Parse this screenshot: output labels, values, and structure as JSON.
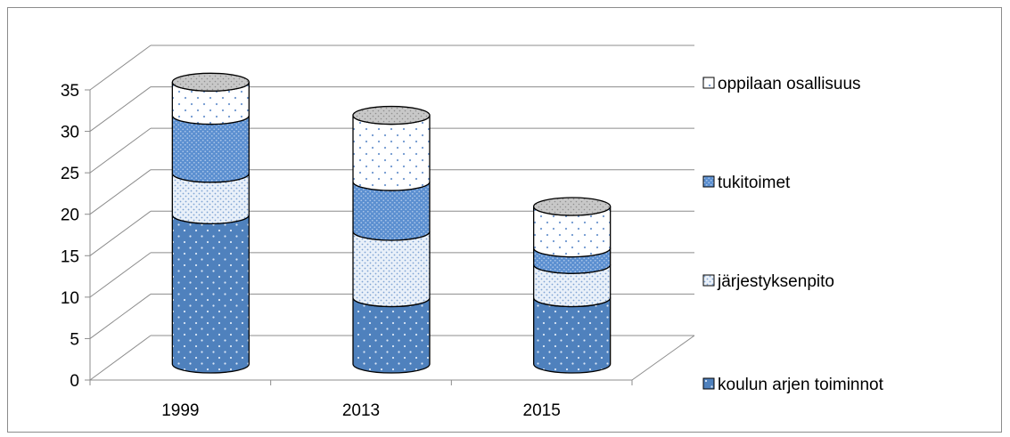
{
  "chart_data": {
    "type": "bar",
    "stacked": true,
    "style": "3d-cylinder",
    "title": "",
    "xlabel": "",
    "ylabel": "",
    "categories": [
      "1999",
      "2013",
      "2015"
    ],
    "ylim": [
      0,
      35
    ],
    "yticks": [
      0,
      5,
      10,
      15,
      20,
      25,
      30,
      35
    ],
    "grid": true,
    "legend_position": "right",
    "series": [
      {
        "name": "koulun arjen toiminnot",
        "values": [
          18,
          8,
          8
        ],
        "color": "#4f81bd",
        "pattern": "dots-on-blue"
      },
      {
        "name": "järjestyksenpito",
        "values": [
          5,
          8,
          4
        ],
        "color": "#dce6f2",
        "pattern": "fine-dots-light"
      },
      {
        "name": "tukitoimet",
        "values": [
          7,
          6,
          2
        ],
        "color": "#5b8fd0",
        "pattern": "dense-dots-blue"
      },
      {
        "name": "oppilaan osallisuus",
        "values": [
          4,
          8,
          5
        ],
        "color": "#ffffff",
        "pattern": "sparse-dots-white"
      }
    ]
  }
}
